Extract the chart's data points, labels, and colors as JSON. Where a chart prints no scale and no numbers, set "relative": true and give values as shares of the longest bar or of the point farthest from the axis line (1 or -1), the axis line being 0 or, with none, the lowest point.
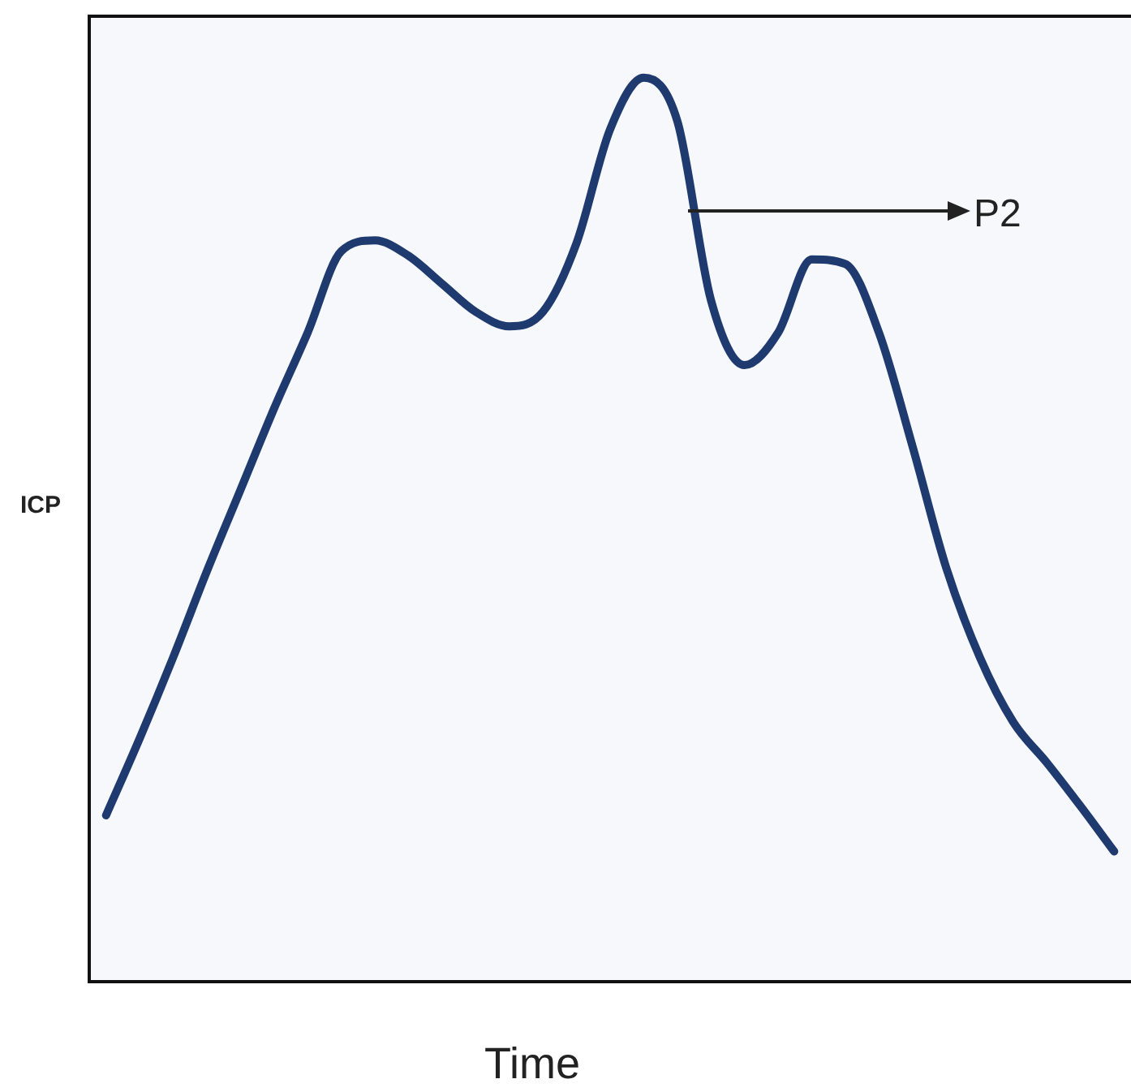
{
  "chart_data": {
    "type": "line",
    "xlabel": "Time",
    "ylabel": "ICP",
    "relative": true,
    "legend": false,
    "marker": "none",
    "annotations": [
      "P2"
    ],
    "categories": [
      null,
      null,
      null,
      null,
      null,
      null,
      null,
      null,
      null,
      null,
      null,
      null,
      null,
      null,
      null,
      null,
      null,
      null,
      null,
      null,
      null,
      null,
      null,
      null,
      null,
      null,
      null,
      null,
      null,
      null,
      null
    ],
    "series": [
      {
        "color": "#1f3a6e",
        "values": [
          0.184,
          0.269,
          0.359,
          0.454,
          0.544,
          0.634,
          0.718,
          0.808,
          0.82,
          0.803,
          0.772,
          0.741,
          0.725,
          0.741,
          0.817,
          0.943,
          1.0,
          0.952,
          0.754,
          0.682,
          0.718,
          0.799,
          0.794,
          0.718,
          0.592,
          0.458,
          0.359,
          0.287,
          0.242,
          0.194,
          0.144
        ]
      }
    ]
  }
}
